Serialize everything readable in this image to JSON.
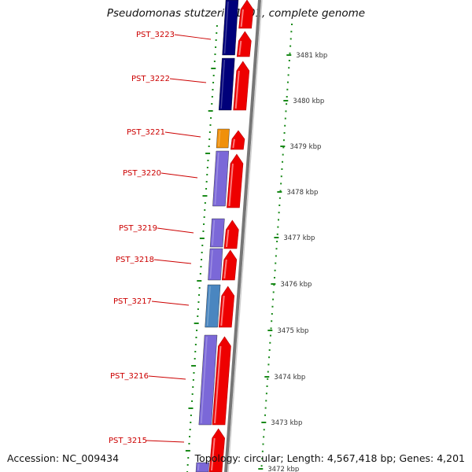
{
  "title": "Pseudomonas stutzeri A1501, complete genome",
  "accession": "Accession: NC_009434",
  "summary": "Topology: circular; Length: 4,567,418 bp; Genes: 4,201",
  "colors": {
    "label": "#cc0000",
    "leader": "#cc0000",
    "ring_dots": "#1a8a1a",
    "backbone": "#888888",
    "strand_arrow": "#ee0000"
  },
  "genes": [
    {
      "id": "PST_3223",
      "color": "#00007a"
    },
    {
      "id": "PST_3222",
      "color": "#00007a"
    },
    {
      "id": "PST_3221",
      "color": "#f0900a"
    },
    {
      "id": "PST_3220",
      "color": "#7b68d8"
    },
    {
      "id": "PST_3219",
      "color": "#7b68d8"
    },
    {
      "id": "PST_3218",
      "color": "#7b68d8"
    },
    {
      "id": "PST_3217",
      "color": "#4a86c0"
    },
    {
      "id": "PST_3216",
      "color": "#7b68d8"
    },
    {
      "id": "PST_3215",
      "color": "#7b68d8"
    }
  ],
  "scale_labels": [
    "3481 kbp",
    "3480 kbp",
    "3479 kbp",
    "3478 kbp",
    "3477 kbp",
    "3476 kbp",
    "3475 kbp",
    "3474 kbp",
    "3473 kbp",
    "3472 kbp"
  ]
}
